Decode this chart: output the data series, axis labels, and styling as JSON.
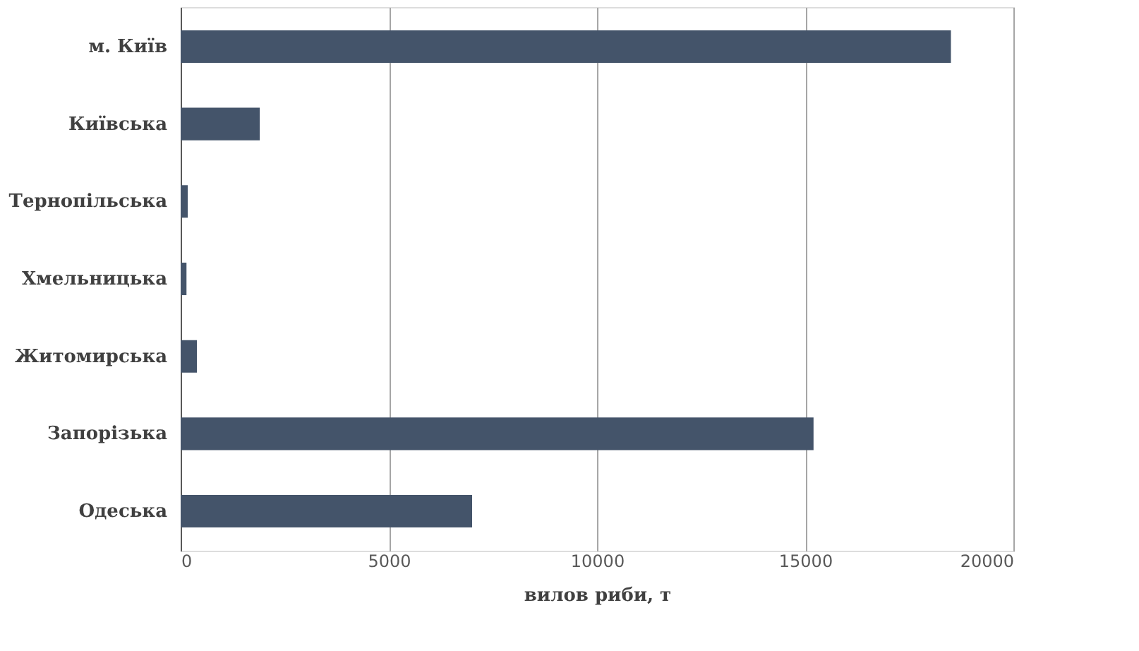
{
  "chart_data": {
    "type": "bar",
    "orientation": "horizontal",
    "categories": [
      "м. Київ",
      "Київська",
      "Тернопільська",
      "Хмельницька",
      "Житомирська",
      "Запорізька",
      "Одеська"
    ],
    "values": [
      18500,
      1900,
      170,
      140,
      390,
      15200,
      7000
    ],
    "color": "#44546a",
    "xlabel": "вилов риби, т",
    "xlim": [
      0,
      20000
    ],
    "xticks": [
      0,
      5000,
      10000,
      15000,
      20000
    ],
    "grid": "x"
  }
}
